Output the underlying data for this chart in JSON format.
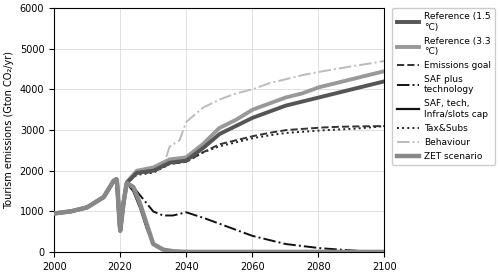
{
  "title": "",
  "xlabel": "",
  "ylabel": "Tourism emissions (Gton CO₂/yr)",
  "xlim": [
    2000,
    2100
  ],
  "ylim": [
    0,
    6000
  ],
  "yticks": [
    0,
    1000,
    2000,
    3000,
    4000,
    5000,
    6000
  ],
  "xticks": [
    2000,
    2020,
    2040,
    2060,
    2080,
    2100
  ],
  "figsize": [
    5.0,
    2.76
  ],
  "dpi": 100,
  "series": {
    "ref15": {
      "label": "Reference (1.5\n°C)",
      "color": "#555555",
      "linewidth": 2.8,
      "linestyle": "solid",
      "zorder": 5
    },
    "ref33": {
      "label": "Reference (3.3\n°C)",
      "color": "#999999",
      "linewidth": 2.8,
      "linestyle": "solid",
      "zorder": 4
    },
    "emissions_goal": {
      "label": "Emissions goal",
      "color": "#333333",
      "linewidth": 1.4,
      "linestyle": "dashed",
      "zorder": 3
    },
    "saf_tech": {
      "label": "SAF plus\ntechnology",
      "color": "#111111",
      "linewidth": 1.4,
      "linestyle": "dashdot",
      "zorder": 6
    },
    "saf_tech_infra": {
      "label": "SAF, tech,\nInfra/slots cap",
      "color": "#111111",
      "linewidth": 1.6,
      "linestyle": "solid",
      "zorder": 7
    },
    "tax_subs": {
      "label": "Tax&Subs",
      "color": "#222222",
      "linewidth": 1.4,
      "linestyle": "dotted",
      "zorder": 2
    },
    "behaviour": {
      "label": "Behaviour",
      "color": "#bbbbbb",
      "linewidth": 1.4,
      "linestyle": "dashdot",
      "zorder": 1
    },
    "zet": {
      "label": "ZET scenario",
      "color": "#888888",
      "linewidth": 3.2,
      "linestyle": "solid",
      "zorder": 8
    }
  }
}
